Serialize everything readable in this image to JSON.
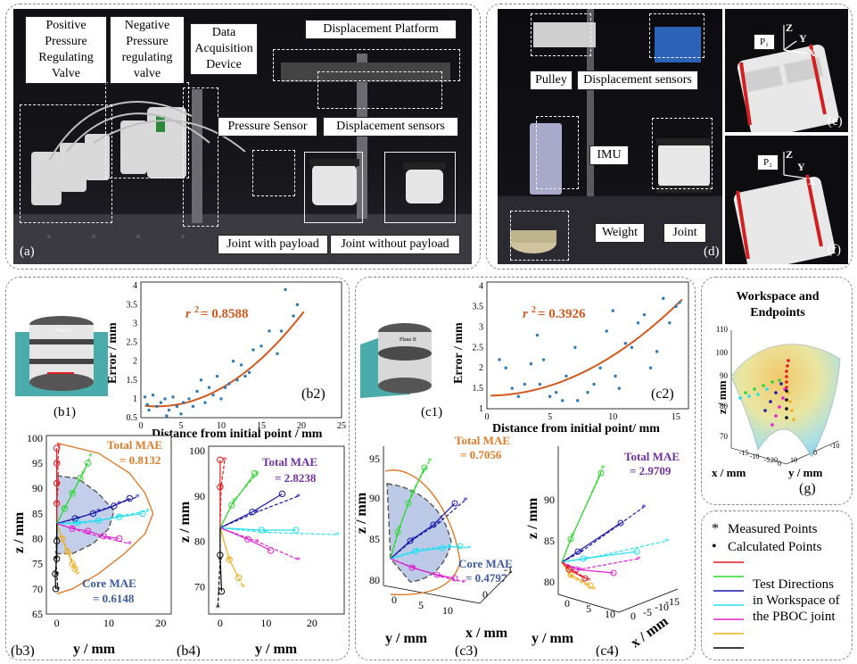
{
  "panel_a": {
    "tag": "(a)",
    "labels": {
      "positive_valve": "Positive\nPressure\nRegulating\nValve",
      "negative_valve": "Negative\nPressure\nregulating\nvalve",
      "daq": "Data\nAcquisition\nDevice",
      "platform": "Displacement Platform",
      "pressure_sensor": "Pressure Sensor",
      "disp_sensors": "Displacement sensors",
      "joint_payload": "Joint with payload",
      "joint_nopayload": "Joint without payload"
    }
  },
  "panel_d": {
    "tag": "(d)",
    "labels": {
      "pulley": "Pulley",
      "disp_sensors": "Displacement sensors",
      "imu": "IMU",
      "weight": "Weight",
      "joint": "Joint"
    }
  },
  "panel_e": {
    "tag": "(e)",
    "point": "P₁",
    "axes": [
      "Z",
      "Y",
      "X"
    ]
  },
  "panel_f": {
    "tag": "(f)",
    "point": "P₂",
    "axes": [
      "Z",
      "Y",
      "X"
    ]
  },
  "panel_b1": {
    "tag": "(b1)",
    "plane": "Plane I"
  },
  "panel_c1": {
    "tag": "(c1)",
    "plane": "Plane II"
  },
  "chart_b2": {
    "tag": "(b2)",
    "r2_label": "r",
    "r2_value": "= 0.8588",
    "xlabel": "Distance from initial point / mm",
    "ylabel": "Error / mm",
    "xticks": [
      "0",
      "5",
      "10",
      "15",
      "20",
      "25"
    ],
    "yticks": [
      "0.5",
      "1",
      "1.5",
      "2",
      "2.5",
      "3",
      "3.5",
      "4"
    ]
  },
  "chart_c2": {
    "tag": "(c2)",
    "r2_label": "r",
    "r2_value": "= 0.3926",
    "xlabel": "Distance from initial point/ mm",
    "ylabel": "Error / mm",
    "xticks": [
      "0",
      "5",
      "10",
      "15"
    ],
    "yticks": [
      "1",
      "1.5",
      "2",
      "2.5",
      "3",
      "3.5",
      "4"
    ]
  },
  "chart_b3": {
    "tag": "(b3)",
    "total_mae": "Total MAE",
    "total_mae_value": "= 0.8132",
    "core_mae": "Core MAE",
    "core_mae_value": "= 0.6148",
    "xlabel": "y / mm",
    "ylabel": "z / mm",
    "xticks": [
      "0",
      "10",
      "20"
    ],
    "yticks": [
      "65",
      "70",
      "75",
      "80",
      "85",
      "90",
      "95",
      "100"
    ]
  },
  "chart_b4": {
    "tag": "(b4)",
    "total_mae": "Total MAE",
    "total_mae_value": "= 2.8238",
    "xlabel": "y / mm",
    "ylabel": "z / mm",
    "xticks": [
      "0",
      "10",
      "20"
    ],
    "yticks": [
      "70",
      "80",
      "90",
      "100"
    ]
  },
  "chart_c3": {
    "tag": "(c3)",
    "total_mae": "Total MAE",
    "total_mae_value": "= 0.7056",
    "core_mae": "Core MAE",
    "core_mae_value": "= 0.4797",
    "ylabel": "z / mm",
    "xlabel_y": "y / mm",
    "xlabel_x": "x / mm",
    "zticks": [
      "80",
      "85",
      "90",
      "95"
    ],
    "yticks": [
      "0",
      "5",
      "10"
    ],
    "xticks": [
      "0",
      "-1"
    ]
  },
  "chart_c4": {
    "tag": "(c4)",
    "total_mae": "Total MAE",
    "total_mae_value": "= 2.9709",
    "ylabel": "z / mm",
    "xlabel_y": "y / mm",
    "xlabel_x": "x / mm",
    "zticks": [
      "80",
      "85",
      "90"
    ],
    "yticks": [
      "0",
      "5",
      "10"
    ],
    "xticks": [
      "-15",
      "-10",
      "-5",
      "0"
    ]
  },
  "chart_g": {
    "tag": "(g)",
    "title": "Workspace and\nEndpoints",
    "zlabel": "z / mm",
    "xlabel": "x / mm",
    "ylabel": "y / mm",
    "zticks": [
      "70",
      "80",
      "90",
      "100",
      "110"
    ],
    "xticks": [
      "-15",
      "-10",
      "-5",
      "0"
    ],
    "yticks": [
      "20",
      "10",
      "0",
      "-10"
    ]
  },
  "legend": {
    "measured": "Measured Points",
    "calculated": "Calculated Points",
    "directions_text": "Test Directions\nin Workspace of\nthe PBOC joint",
    "colors": [
      "#e8181c",
      "#2fd62f",
      "#1a1aa8",
      "#22e0f0",
      "#e020d0",
      "#f0b020",
      "#000000"
    ]
  },
  "series_colors": {
    "red": "#e8181c",
    "green": "#2fd62f",
    "blue": "#1a1aa8",
    "cyan": "#22e0f0",
    "magenta": "#e020d0",
    "orange": "#f0b020",
    "black": "#000000",
    "fit": "#d4581c",
    "scatter": "#2e7bb6",
    "core": "#8fa6d8"
  }
}
